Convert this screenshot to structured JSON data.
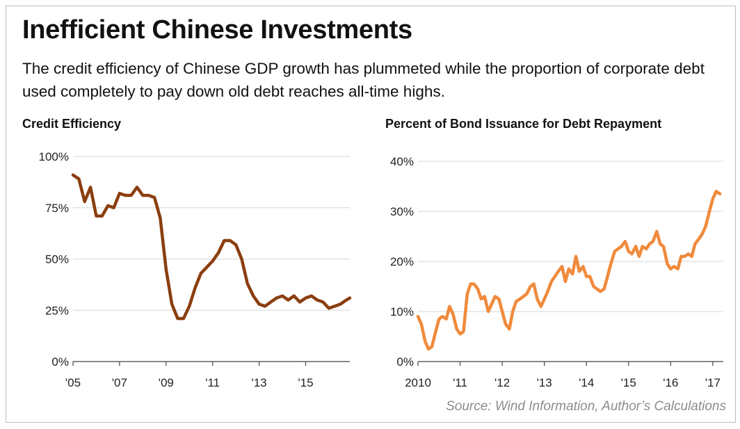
{
  "header": {
    "title": "Inefficient Chinese Investments",
    "subtitle": "The credit efficiency of Chinese GDP growth has plummeted while the proportion of corporate debt used completely to pay down old debt reaches all-time highs."
  },
  "source": "Source: Wind Information, Author’s Calculations",
  "chart_data": [
    {
      "type": "line",
      "title": "Credit Efficiency",
      "xlabel": "",
      "ylabel": "",
      "color": "#8B3E0F",
      "grid": true,
      "legend": "none",
      "xlim": [
        2005,
        2016.9
      ],
      "ylim": [
        0,
        100
      ],
      "x_ticks": [
        2005,
        2007,
        2009,
        2011,
        2013,
        2015
      ],
      "x_tick_labels": [
        "'05",
        "'07",
        "'09",
        "'11",
        "'13",
        "'15"
      ],
      "y_ticks": [
        0,
        25,
        50,
        75,
        100
      ],
      "y_tick_labels": [
        "0%",
        "25%",
        "50%",
        "75%",
        "100%"
      ],
      "series": [
        {
          "x": [
            2005.0,
            2005.25,
            2005.5,
            2005.75,
            2006.0,
            2006.25,
            2006.5,
            2006.75,
            2007.0,
            2007.25,
            2007.5,
            2007.75,
            2008.0,
            2008.25,
            2008.5,
            2008.75,
            2009.0,
            2009.25,
            2009.5,
            2009.75,
            2010.0,
            2010.25,
            2010.5,
            2010.75,
            2011.0,
            2011.25,
            2011.5,
            2011.75,
            2012.0,
            2012.25,
            2012.5,
            2012.75,
            2013.0,
            2013.25,
            2013.5,
            2013.75,
            2014.0,
            2014.25,
            2014.5,
            2014.75,
            2015.0,
            2015.25,
            2015.5,
            2015.75,
            2016.0,
            2016.25,
            2016.5,
            2016.75,
            2016.9
          ],
          "y": [
            91,
            89,
            78,
            85,
            71,
            71,
            76,
            75,
            82,
            81,
            81,
            85,
            81,
            81,
            80,
            70,
            45,
            28,
            21,
            21,
            27,
            36,
            43,
            46,
            49,
            53,
            59,
            59,
            57,
            50,
            38,
            32,
            28,
            27,
            29,
            31,
            32,
            30,
            32,
            29,
            31,
            32,
            30,
            29,
            26,
            27,
            28,
            30,
            31
          ]
        }
      ]
    },
    {
      "type": "line",
      "title": "Percent of Bond Issuance for Debt Repayment",
      "xlabel": "",
      "ylabel": "",
      "color": "#F08A3C",
      "grid": true,
      "legend": "none",
      "xlim": [
        2010,
        2017.25
      ],
      "ylim": [
        0,
        40
      ],
      "x_ticks": [
        2010,
        2011,
        2012,
        2013,
        2014,
        2015,
        2016,
        2017
      ],
      "x_tick_labels": [
        "2010",
        "'11",
        "'12",
        "'13",
        "'14",
        "'15",
        "'16",
        "'17"
      ],
      "y_ticks": [
        0,
        10,
        20,
        30,
        40
      ],
      "y_tick_labels": [
        "0%",
        "10%",
        "20%",
        "30%",
        "40%"
      ],
      "series": [
        {
          "x": [
            2010.0,
            2010.08,
            2010.17,
            2010.25,
            2010.33,
            2010.42,
            2010.5,
            2010.58,
            2010.67,
            2010.75,
            2010.83,
            2010.92,
            2011.0,
            2011.08,
            2011.17,
            2011.25,
            2011.33,
            2011.42,
            2011.5,
            2011.58,
            2011.67,
            2011.75,
            2011.83,
            2011.92,
            2012.0,
            2012.08,
            2012.17,
            2012.25,
            2012.33,
            2012.42,
            2012.5,
            2012.58,
            2012.67,
            2012.75,
            2012.83,
            2012.92,
            2013.0,
            2013.08,
            2013.17,
            2013.25,
            2013.33,
            2013.42,
            2013.5,
            2013.58,
            2013.67,
            2013.75,
            2013.83,
            2013.92,
            2014.0,
            2014.08,
            2014.17,
            2014.25,
            2014.33,
            2014.42,
            2014.5,
            2014.58,
            2014.67,
            2014.75,
            2014.83,
            2014.92,
            2015.0,
            2015.08,
            2015.17,
            2015.25,
            2015.33,
            2015.42,
            2015.5,
            2015.58,
            2015.67,
            2015.75,
            2015.83,
            2015.92,
            2016.0,
            2016.08,
            2016.17,
            2016.25,
            2016.33,
            2016.42,
            2016.5,
            2016.58,
            2016.67,
            2016.75,
            2016.83,
            2016.92,
            2017.0,
            2017.08,
            2017.17
          ],
          "y": [
            9,
            7.5,
            4,
            2.5,
            3,
            6,
            8.5,
            9,
            8.5,
            11,
            9.5,
            6.5,
            5.5,
            6,
            13.5,
            15.5,
            15.5,
            14.5,
            12.5,
            13,
            10,
            11.5,
            13,
            12.5,
            10,
            7.5,
            6.5,
            10,
            12,
            12.5,
            13,
            13.5,
            15,
            15.5,
            12.5,
            11,
            12.5,
            14,
            16,
            17,
            18,
            19,
            16,
            18.5,
            17.5,
            21,
            18,
            19,
            17,
            17,
            15,
            14.5,
            14,
            14.5,
            17,
            19.5,
            22,
            22.5,
            23,
            24,
            22,
            21.5,
            23,
            21,
            23,
            22.5,
            23.5,
            24,
            26,
            23.5,
            23,
            19.5,
            18.5,
            19,
            18.5,
            21,
            21,
            21.5,
            21,
            23.5,
            24.5,
            25.5,
            27,
            30,
            32.5,
            34,
            33.5
          ]
        }
      ]
    }
  ]
}
